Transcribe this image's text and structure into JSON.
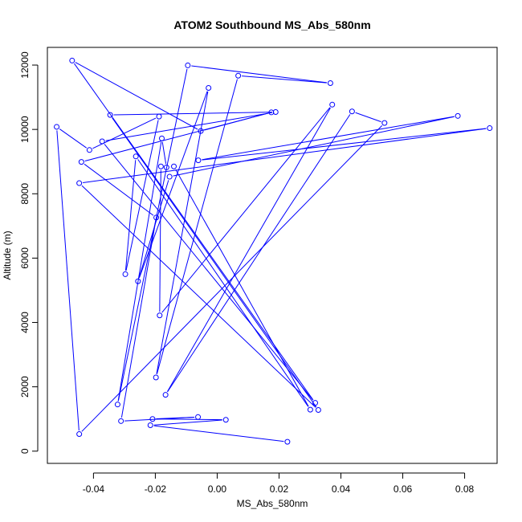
{
  "chart_data": {
    "type": "line",
    "title": "ATOM2 Southbound MS_Abs_580nm",
    "xlabel": "MS_Abs_580nm",
    "ylabel": "Altitude (m)",
    "xlim": [
      -0.0549,
      0.0905
    ],
    "ylim": [
      -380,
      12550
    ],
    "x_ticks": [
      -0.04,
      -0.02,
      0.0,
      0.02,
      0.04,
      0.06,
      0.08
    ],
    "x_tick_labels": [
      "-0.04",
      "-0.02",
      "0.00",
      "0.02",
      "0.04",
      "0.06",
      "0.08"
    ],
    "y_ticks": [
      0,
      2000,
      4000,
      6000,
      8000,
      10000,
      12000
    ],
    "y_tick_labels": [
      "0",
      "2000",
      "4000",
      "6000",
      "8000",
      "10000",
      "12000"
    ],
    "grid": false,
    "line_color": "#0000ff",
    "marker": "open-circle",
    "series": [
      {
        "points": [
          {
            "x": 0.0227,
            "y": 290
          },
          {
            "x": -0.0216,
            "y": 805
          },
          {
            "x": 0.0028,
            "y": 975
          },
          {
            "x": -0.0209,
            "y": 1000
          },
          {
            "x": -0.0062,
            "y": 1060
          },
          {
            "x": -0.0311,
            "y": 935
          },
          {
            "x": -0.0197,
            "y": 7260
          },
          {
            "x": -0.0439,
            "y": 8990
          },
          {
            "x": 0.0175,
            "y": 10530
          },
          {
            "x": -0.0053,
            "y": 9950
          },
          {
            "x": -0.0469,
            "y": 12140
          },
          {
            "x": 0.0317,
            "y": 1500
          },
          {
            "x": -0.0372,
            "y": 9630
          },
          {
            "x": 0.0189,
            "y": 10540
          },
          {
            "x": -0.0346,
            "y": 10450
          },
          {
            "x": 0.0327,
            "y": 1280
          },
          {
            "x": -0.0446,
            "y": 8330
          },
          {
            "x": 0.0881,
            "y": 10040
          },
          {
            "x": -0.0061,
            "y": 9040
          },
          {
            "x": 0.0778,
            "y": 10420
          },
          {
            "x": -0.0154,
            "y": 8530
          },
          {
            "x": -0.0256,
            "y": 5280
          },
          {
            "x": -0.0028,
            "y": 11290
          },
          {
            "x": -0.0198,
            "y": 2290
          },
          {
            "x": 0.0068,
            "y": 11670
          },
          {
            "x": 0.0366,
            "y": 11440
          },
          {
            "x": -0.0095,
            "y": 11990
          },
          {
            "x": -0.0322,
            "y": 1450
          },
          {
            "x": -0.0179,
            "y": 9720
          },
          {
            "x": -0.0164,
            "y": 8820
          },
          {
            "x": -0.014,
            "y": 8850
          },
          {
            "x": 0.0301,
            "y": 1290
          },
          {
            "x": -0.0263,
            "y": 9160
          },
          {
            "x": -0.0297,
            "y": 5500
          },
          {
            "x": -0.0188,
            "y": 10400
          },
          {
            "x": -0.0413,
            "y": 9360
          },
          {
            "x": -0.0519,
            "y": 10080
          },
          {
            "x": -0.0446,
            "y": 530
          },
          {
            "x": 0.0541,
            "y": 10200
          },
          {
            "x": 0.0436,
            "y": 10560
          },
          {
            "x": -0.0167,
            "y": 1750
          },
          {
            "x": 0.0372,
            "y": 10770
          },
          {
            "x": -0.0186,
            "y": 4220
          },
          {
            "x": -0.0182,
            "y": 8850
          }
        ]
      }
    ]
  }
}
